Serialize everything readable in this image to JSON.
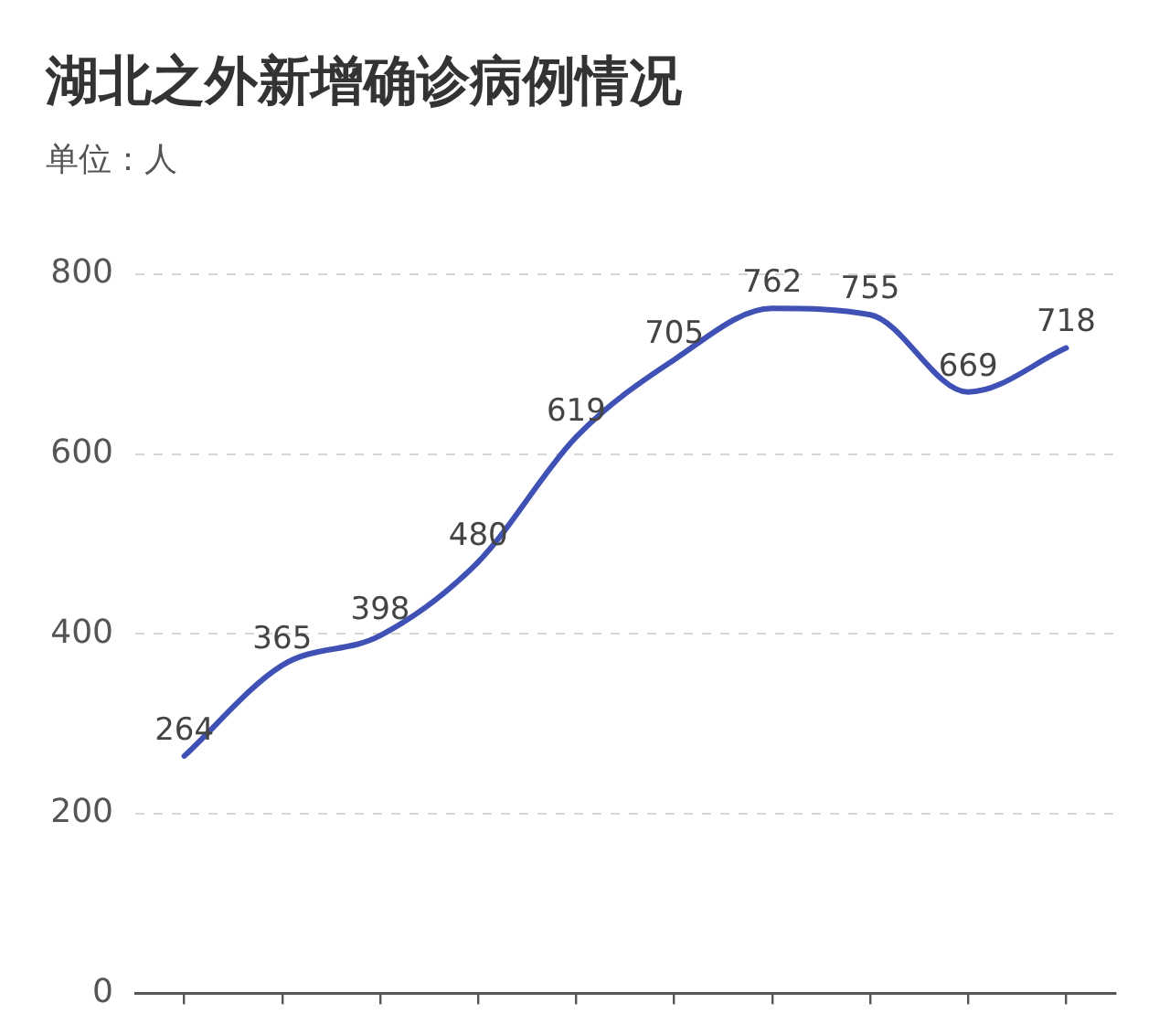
{
  "chart_data": {
    "type": "line",
    "title": "湖北之外新增确诊病例情况",
    "subtitle": "单位：人",
    "categories": [
      null,
      null,
      null,
      null,
      null,
      null,
      null,
      null,
      null,
      null
    ],
    "series": [
      {
        "color": "#3f51b5",
        "values": [
          264,
          365,
          398,
          480,
          619,
          705,
          762,
          755,
          669,
          718
        ]
      }
    ],
    "ylim": [
      0,
      800
    ],
    "yticks": [
      0,
      200,
      400,
      600,
      800
    ],
    "grid": "y",
    "legend": false,
    "marker": "none",
    "data_labels": true,
    "tick_labels": "y"
  }
}
